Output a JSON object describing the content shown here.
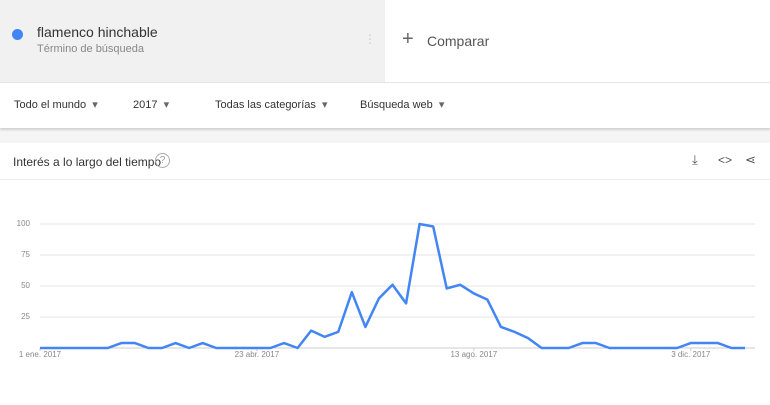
{
  "search": {
    "term": "flamenco hinchable",
    "term_type": "Término de búsqueda",
    "compare": "Comparar"
  },
  "filters": [
    "Todo el mundo",
    "2017",
    "Todas las categorías",
    "Búsqueda web"
  ],
  "chart_data": {
    "type": "line",
    "title": "Interés a lo largo del tiempo",
    "categories": [
      "1 ene. 2017",
      null,
      null,
      null,
      null,
      null,
      null,
      null,
      null,
      null,
      null,
      null,
      null,
      null,
      null,
      null,
      "23 abr. 2017",
      null,
      null,
      null,
      null,
      null,
      null,
      null,
      null,
      null,
      null,
      null,
      null,
      null,
      null,
      null,
      "13 ago. 2017",
      null,
      null,
      null,
      null,
      null,
      null,
      null,
      null,
      null,
      null,
      null,
      null,
      null,
      null,
      null,
      "3 dic. 2017",
      null,
      null,
      null,
      null
    ],
    "values": [
      0,
      0,
      0,
      0,
      0,
      0,
      4,
      4,
      0,
      0,
      4,
      0,
      4,
      0,
      0,
      0,
      0,
      0,
      4,
      0,
      14,
      9,
      13,
      45,
      17,
      40,
      51,
      36,
      100,
      98,
      48,
      51,
      44,
      39,
      17,
      13,
      8,
      0,
      0,
      0,
      4,
      4,
      0,
      0,
      0,
      0,
      0,
      0,
      4,
      4,
      4,
      0,
      0
    ],
    "color": "#4285f4",
    "ylim": [
      0,
      100
    ],
    "yticks": [
      25,
      50,
      75,
      100
    ],
    "grid": true
  }
}
